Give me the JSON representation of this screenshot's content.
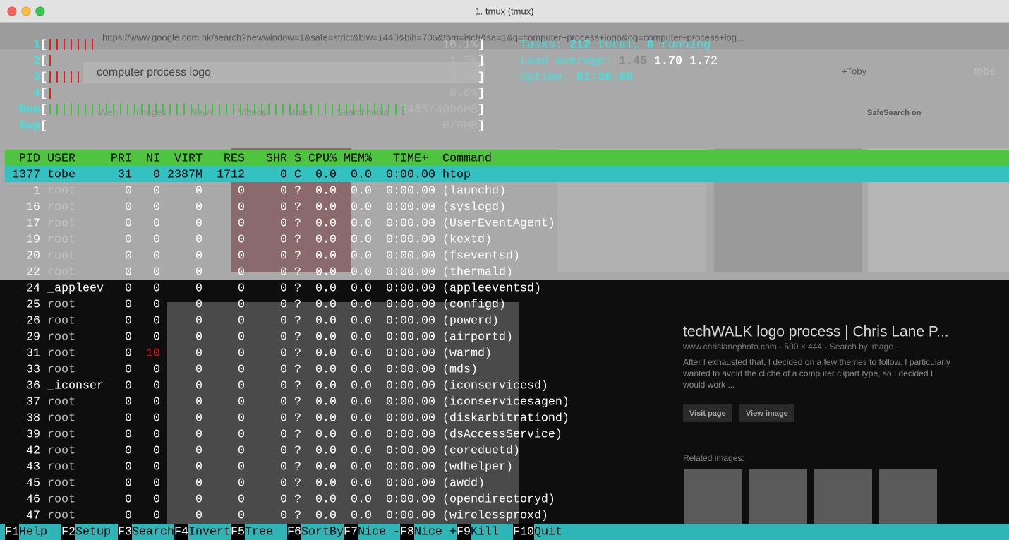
{
  "window": {
    "title": "1. tmux (tmux)"
  },
  "browser": {
    "url": "https://www.google.com.hk/search?newwindow=1&safe=strict&biw=1440&bih=706&tbm=isch&sa=1&q=computer+process+logo&oq=computer+process+log...",
    "search_query": "computer process logo",
    "account_name": "+Toby",
    "account_user": "tobe",
    "tabs": [
      "Web",
      "Images",
      "News",
      "Videos",
      "More",
      "Search tools"
    ],
    "safesearch": "SafeSearch on",
    "panel": {
      "title": "techWALK logo process | Chris Lane P...",
      "meta": "www.chrislanephoto.com - 500 × 444 - Search by image",
      "description": [
        "After I exhausted that, I decided on a few themes to follow. I particularly",
        "wanted to avoid the cliche of a computer clipart type, so I decided I",
        "would work ..."
      ],
      "buttons": [
        "Visit page",
        "View image"
      ],
      "related": "Related images:"
    }
  },
  "htop": {
    "bracket_open": "[",
    "bracket_close": "]",
    "meters": [
      {
        "label": "1",
        "value": 10.1,
        "max": 100,
        "value_label": "10.1%"
      },
      {
        "label": "2",
        "value": 1.3,
        "max": 100,
        "value_label": "1.3%"
      },
      {
        "label": "3",
        "value": 7.1,
        "max": 100,
        "value_label": "7.1%"
      },
      {
        "label": "4",
        "value": 0.6,
        "max": 100,
        "value_label": "0.6%"
      },
      {
        "label": "Mem",
        "value": 3465,
        "max": 4096,
        "value_label": "3465/4096MB"
      },
      {
        "label": "Swp",
        "value": 0,
        "max": 0,
        "value_label": "0/0MB"
      }
    ],
    "info": [
      [
        {
          "text": "Tasks:",
          "color": "#3fe3e0"
        },
        {
          "text": "212",
          "color": "#3fe3e0",
          "bold": true
        },
        {
          "text": "total,",
          "color": "#3fe3e0"
        },
        {
          "text": "0",
          "color": "#3fe3e0",
          "bold": true
        },
        {
          "text": "running",
          "color": "#3fe3e0"
        }
      ],
      [
        {
          "text": "Load average:",
          "color": "#3fe3e0"
        },
        {
          "text": "1.45",
          "color": "#8a8a8a",
          "bold": true
        },
        {
          "text": "1.70",
          "color": "#ffffff",
          "bold": true
        },
        {
          "text": "1.72",
          "color": "#ffffff"
        }
      ],
      [
        {
          "text": "Uptime:",
          "color": "#3fe3e0"
        },
        {
          "text": "01:30:09",
          "color": "#3fe3e0",
          "bold": true
        }
      ]
    ],
    "columns": [
      "PID",
      "USER",
      "PRI",
      "NI",
      "VIRT",
      "RES",
      "SHR",
      "S",
      "CPU%",
      "MEM%",
      "TIME+",
      "Command"
    ],
    "rows": [
      [
        "1377",
        "tobe",
        "31",
        "0",
        "2387M",
        "1712",
        "0",
        "C",
        "0.0",
        "0.0",
        "0:00.00",
        "htop"
      ],
      [
        "1",
        "root",
        "0",
        "0",
        "0",
        "0",
        "0",
        "?",
        "0.0",
        "0.0",
        "0:00.00",
        "(launchd)"
      ],
      [
        "16",
        "root",
        "0",
        "0",
        "0",
        "0",
        "0",
        "?",
        "0.0",
        "0.0",
        "0:00.00",
        "(syslogd)"
      ],
      [
        "17",
        "root",
        "0",
        "0",
        "0",
        "0",
        "0",
        "?",
        "0.0",
        "0.0",
        "0:00.00",
        "(UserEventAgent)"
      ],
      [
        "19",
        "root",
        "0",
        "0",
        "0",
        "0",
        "0",
        "?",
        "0.0",
        "0.0",
        "0:00.00",
        "(kextd)"
      ],
      [
        "20",
        "root",
        "0",
        "0",
        "0",
        "0",
        "0",
        "?",
        "0.0",
        "0.0",
        "0:00.00",
        "(fseventsd)"
      ],
      [
        "22",
        "root",
        "0",
        "0",
        "0",
        "0",
        "0",
        "?",
        "0.0",
        "0.0",
        "0:00.00",
        "(thermald)"
      ],
      [
        "24",
        "_appleev",
        "0",
        "0",
        "0",
        "0",
        "0",
        "?",
        "0.0",
        "0.0",
        "0:00.00",
        "(appleeventsd)"
      ],
      [
        "25",
        "root",
        "0",
        "0",
        "0",
        "0",
        "0",
        "?",
        "0.0",
        "0.0",
        "0:00.00",
        "(configd)"
      ],
      [
        "26",
        "root",
        "0",
        "0",
        "0",
        "0",
        "0",
        "?",
        "0.0",
        "0.0",
        "0:00.00",
        "(powerd)"
      ],
      [
        "29",
        "root",
        "0",
        "0",
        "0",
        "0",
        "0",
        "?",
        "0.0",
        "0.0",
        "0:00.00",
        "(airportd)"
      ],
      [
        "31",
        "root",
        "0",
        "10",
        "0",
        "0",
        "0",
        "?",
        "0.0",
        "0.0",
        "0:00.00",
        "(warmd)"
      ],
      [
        "33",
        "root",
        "0",
        "0",
        "0",
        "0",
        "0",
        "?",
        "0.0",
        "0.0",
        "0:00.00",
        "(mds)"
      ],
      [
        "36",
        "_iconser",
        "0",
        "0",
        "0",
        "0",
        "0",
        "?",
        "0.0",
        "0.0",
        "0:00.00",
        "(iconservicesd)"
      ],
      [
        "37",
        "root",
        "0",
        "0",
        "0",
        "0",
        "0",
        "?",
        "0.0",
        "0.0",
        "0:00.00",
        "(iconservicesagen)"
      ],
      [
        "38",
        "root",
        "0",
        "0",
        "0",
        "0",
        "0",
        "?",
        "0.0",
        "0.0",
        "0:00.00",
        "(diskarbitrationd)"
      ],
      [
        "39",
        "root",
        "0",
        "0",
        "0",
        "0",
        "0",
        "?",
        "0.0",
        "0.0",
        "0:00.00",
        "(dsAccessService)"
      ],
      [
        "42",
        "root",
        "0",
        "0",
        "0",
        "0",
        "0",
        "?",
        "0.0",
        "0.0",
        "0:00.00",
        "(coreduetd)"
      ],
      [
        "43",
        "root",
        "0",
        "0",
        "0",
        "0",
        "0",
        "?",
        "0.0",
        "0.0",
        "0:00.00",
        "(wdhelper)"
      ],
      [
        "45",
        "root",
        "0",
        "0",
        "0",
        "0",
        "0",
        "?",
        "0.0",
        "0.0",
        "0:00.00",
        "(awdd)"
      ],
      [
        "46",
        "root",
        "0",
        "0",
        "0",
        "0",
        "0",
        "?",
        "0.0",
        "0.0",
        "0:00.00",
        "(opendirectoryd)"
      ],
      [
        "47",
        "root",
        "0",
        "0",
        "0",
        "0",
        "0",
        "?",
        "0.0",
        "0.0",
        "0:00.00",
        "(wirelessproxd)"
      ]
    ],
    "footer": [
      {
        "key": "F1",
        "label": "Help"
      },
      {
        "key": "F2",
        "label": "Setup"
      },
      {
        "key": "F3",
        "label": "Search"
      },
      {
        "key": "F4",
        "label": "Invert"
      },
      {
        "key": "F5",
        "label": "Tree"
      },
      {
        "key": "F6",
        "label": "SortBy"
      },
      {
        "key": "F7",
        "label": "Nice -"
      },
      {
        "key": "F8",
        "label": "Nice +"
      },
      {
        "key": "F9",
        "label": "Kill"
      },
      {
        "key": "F10",
        "label": "Quit"
      }
    ]
  }
}
